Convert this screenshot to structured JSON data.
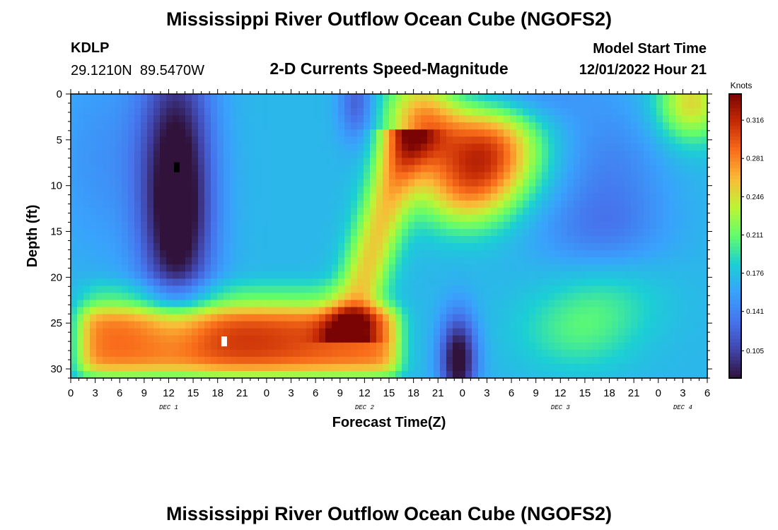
{
  "header": {
    "title": "Mississippi River Outflow Ocean Cube (NGOFS2)",
    "station_id": "KDLP",
    "station_coords": "29.1210N  89.5470W",
    "plot_title": "2-D Currents Speed-Magnitude",
    "model_start_label": "Model Start Time",
    "model_start_value": "12/01/2022 Hour 21"
  },
  "footer": {
    "title": "Mississippi River Outflow Ocean Cube (NGOFS2)"
  },
  "chart_data": {
    "type": "heatmap",
    "xlabel": "Forecast Time(Z)",
    "ylabel": "Depth (ft)",
    "x_tick_labels": [
      "0",
      "3",
      "6",
      "9",
      "12",
      "15",
      "18",
      "21",
      "0",
      "3",
      "6",
      "9",
      "12",
      "15",
      "18",
      "21",
      "0",
      "3",
      "6",
      "9",
      "12",
      "15",
      "18",
      "21",
      "0",
      "3",
      "6"
    ],
    "day_labels": [
      {
        "label": "DEC 1",
        "at_tick_index": 4
      },
      {
        "label": "DEC 2",
        "at_tick_index": 12
      },
      {
        "label": "DEC 3",
        "at_tick_index": 20
      },
      {
        "label": "DEC 4",
        "at_tick_index": 25
      }
    ],
    "y_ticks": [
      0,
      5,
      10,
      15,
      20,
      25,
      30
    ],
    "ylim": [
      0,
      31
    ],
    "xlim_hours": [
      0,
      78
    ],
    "y_inverted": true,
    "colorbar": {
      "title": "Knots",
      "tick_labels": [
        "0.105",
        "0.141",
        "0.176",
        "0.211",
        "0.246",
        "0.281",
        "0.316"
      ],
      "range": [
        0.08,
        0.34
      ]
    },
    "speed_field_knots": {
      "background": 0.17,
      "features": [
        {
          "kind": "blob",
          "center_hour": 13,
          "center_depth": 7,
          "spread_hours": 3.2,
          "spread_depth": 9,
          "delta": -0.09
        },
        {
          "kind": "blob",
          "center_hour": 13,
          "center_depth": 17,
          "spread_hours": 3.0,
          "spread_depth": 6,
          "delta": -0.05
        },
        {
          "kind": "blob",
          "center_hour": 4,
          "center_depth": 7,
          "spread_hours": 5.0,
          "spread_depth": 8,
          "delta": -0.02
        },
        {
          "kind": "blob",
          "center_hour": 35,
          "center_depth": 1,
          "spread_hours": 1.5,
          "spread_depth": 3,
          "delta": -0.05
        },
        {
          "kind": "blob",
          "center_hour": 53,
          "center_depth": 0,
          "spread_hours": 6.0,
          "spread_depth": 2.5,
          "delta": -0.04
        },
        {
          "kind": "blob",
          "center_hour": 66,
          "center_depth": 9,
          "spread_hours": 5.0,
          "spread_depth": 6,
          "delta": -0.03
        },
        {
          "kind": "blob",
          "center_hour": 64,
          "center_depth": 15,
          "spread_hours": 6.0,
          "spread_depth": 3,
          "delta": -0.02
        },
        {
          "kind": "blob",
          "center_hour": 47.5,
          "center_depth": 29,
          "spread_hours": 1.6,
          "spread_depth": 3.5,
          "delta": -0.1
        },
        {
          "kind": "blob",
          "center_hour": 43,
          "center_depth": 3,
          "spread_hours": 3.2,
          "spread_depth": 4,
          "delta": 0.1
        },
        {
          "kind": "blob",
          "center_hour": 51,
          "center_depth": 6,
          "spread_hours": 4.5,
          "spread_depth": 4,
          "delta": 0.13
        },
        {
          "kind": "blob",
          "center_hour": 48,
          "center_depth": 11,
          "spread_hours": 4.0,
          "spread_depth": 3,
          "delta": 0.06
        },
        {
          "kind": "blob",
          "center_hour": 76,
          "center_depth": 1,
          "spread_hours": 3.0,
          "spread_depth": 3,
          "delta": 0.08
        },
        {
          "kind": "blob",
          "center_hour": 62,
          "center_depth": 26,
          "spread_hours": 5.0,
          "spread_depth": 3,
          "delta": 0.03
        },
        {
          "kind": "blob",
          "center_hour": 66,
          "center_depth": 22,
          "spread_hours": 5.0,
          "spread_depth": 3,
          "delta": 0.02
        },
        {
          "kind": "band",
          "depth_from": 23.5,
          "depth_to": 30.5,
          "hour_from": 1.2,
          "hour_to": 40,
          "edge_depth": 0.6,
          "edge_hours": 0.8,
          "delta": 0.12
        },
        {
          "kind": "band",
          "depth_from": 20.5,
          "depth_to": 23.5,
          "hour_from": 1.5,
          "hour_to": 33,
          "edge_depth": 0.5,
          "edge_hours": 1.0,
          "delta": 0.03
        },
        {
          "kind": "blob",
          "center_hour": 21,
          "center_depth": 27,
          "spread_hours": 7.0,
          "spread_depth": 2.5,
          "delta": 0.02
        },
        {
          "kind": "ridge",
          "from_hour": 34,
          "from_depth": 26,
          "to_hour": 41,
          "to_depth": 5,
          "width_hours": 2.2,
          "delta": 0.085
        }
      ]
    },
    "markers": [
      {
        "hour": 13,
        "depth": 8,
        "color": "#000000"
      },
      {
        "hour": 18.8,
        "depth": 27,
        "color": "#ffffff"
      }
    ]
  }
}
